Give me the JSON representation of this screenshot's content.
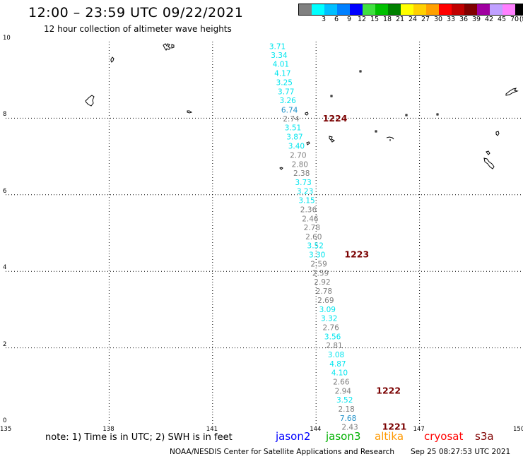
{
  "header": {
    "title": "12:00 – 23:59 UTC 09/22/2021",
    "subtitle": "12 hour collection of altimeter wave heights"
  },
  "legend": {
    "unit_label": "(ft)",
    "bins": [
      {
        "label": "",
        "color": "#808080"
      },
      {
        "label": "3",
        "color": "#00ffff"
      },
      {
        "label": "6",
        "color": "#00bfff"
      },
      {
        "label": "9",
        "color": "#0080ff"
      },
      {
        "label": "12",
        "color": "#0000ff"
      },
      {
        "label": "15",
        "color": "#40e040"
      },
      {
        "label": "18",
        "color": "#00c000"
      },
      {
        "label": "21",
        "color": "#008000"
      },
      {
        "label": "24",
        "color": "#ffff00"
      },
      {
        "label": "27",
        "color": "#ffd000"
      },
      {
        "label": "30",
        "color": "#ffa000"
      },
      {
        "label": "33",
        "color": "#ff0000"
      },
      {
        "label": "36",
        "color": "#c00000"
      },
      {
        "label": "39",
        "color": "#800000"
      },
      {
        "label": "42",
        "color": "#a000a0"
      },
      {
        "label": "45",
        "color": "#c0a0ff"
      },
      {
        "label": "70",
        "color": "#ff80ff"
      },
      {
        "label": "",
        "color": "#000000"
      }
    ]
  },
  "map": {
    "lon_labels": [
      "135",
      "138",
      "141",
      "144",
      "147",
      "150"
    ],
    "lat_labels": [
      "0",
      "2",
      "4",
      "6",
      "8",
      "10"
    ],
    "lon_range": [
      135,
      150
    ],
    "lat_range": [
      0,
      10
    ],
    "observations": [
      {
        "lat": 9.88,
        "lon": 142.88,
        "swh": "3.71",
        "color": "#00e5ee"
      },
      {
        "lat": 9.65,
        "lon": 142.93,
        "swh": "3.34",
        "color": "#00e5ee"
      },
      {
        "lat": 9.42,
        "lon": 142.98,
        "swh": "4.01",
        "color": "#00e5ee"
      },
      {
        "lat": 9.18,
        "lon": 143.03,
        "swh": "4.17",
        "color": "#00e5ee"
      },
      {
        "lat": 8.94,
        "lon": 143.08,
        "swh": "3.25",
        "color": "#00e5ee"
      },
      {
        "lat": 8.7,
        "lon": 143.13,
        "swh": "3.77",
        "color": "#00e5ee"
      },
      {
        "lat": 8.47,
        "lon": 143.18,
        "swh": "3.26",
        "color": "#00e5ee"
      },
      {
        "lat": 8.22,
        "lon": 143.23,
        "swh": "6.74",
        "color": "#1e90c8"
      },
      {
        "lat": 7.99,
        "lon": 143.28,
        "swh": "2.74",
        "color": "#7f7f7f"
      },
      {
        "lat": 7.76,
        "lon": 143.33,
        "swh": "3.51",
        "color": "#00e5ee"
      },
      {
        "lat": 7.52,
        "lon": 143.38,
        "swh": "3.87",
        "color": "#00e5ee"
      },
      {
        "lat": 7.28,
        "lon": 143.43,
        "swh": "3.40",
        "color": "#00e5ee"
      },
      {
        "lat": 7.04,
        "lon": 143.48,
        "swh": "2.70",
        "color": "#7f7f7f"
      },
      {
        "lat": 6.8,
        "lon": 143.53,
        "swh": "2.80",
        "color": "#7f7f7f"
      },
      {
        "lat": 6.57,
        "lon": 143.58,
        "swh": "2.38",
        "color": "#7f7f7f"
      },
      {
        "lat": 6.33,
        "lon": 143.63,
        "swh": "3.73",
        "color": "#00e5ee"
      },
      {
        "lat": 6.1,
        "lon": 143.68,
        "swh": "3.23",
        "color": "#00e5ee"
      },
      {
        "lat": 5.86,
        "lon": 143.73,
        "swh": "3.15",
        "color": "#00e5ee"
      },
      {
        "lat": 5.62,
        "lon": 143.78,
        "swh": "2.36",
        "color": "#7f7f7f"
      },
      {
        "lat": 5.38,
        "lon": 143.83,
        "swh": "2.46",
        "color": "#7f7f7f"
      },
      {
        "lat": 5.15,
        "lon": 143.88,
        "swh": "2.78",
        "color": "#7f7f7f"
      },
      {
        "lat": 4.91,
        "lon": 143.93,
        "swh": "2.60",
        "color": "#7f7f7f"
      },
      {
        "lat": 4.68,
        "lon": 143.98,
        "swh": "3.52",
        "color": "#00e5ee"
      },
      {
        "lat": 4.44,
        "lon": 144.03,
        "swh": "3.30",
        "color": "#00e5ee"
      },
      {
        "lat": 4.2,
        "lon": 144.08,
        "swh": "2.59",
        "color": "#7f7f7f"
      },
      {
        "lat": 3.96,
        "lon": 144.13,
        "swh": "2.59",
        "color": "#7f7f7f"
      },
      {
        "lat": 3.73,
        "lon": 144.18,
        "swh": "2.92",
        "color": "#7f7f7f"
      },
      {
        "lat": 3.49,
        "lon": 144.23,
        "swh": "2.78",
        "color": "#7f7f7f"
      },
      {
        "lat": 3.25,
        "lon": 144.28,
        "swh": "2.69",
        "color": "#7f7f7f"
      },
      {
        "lat": 3.01,
        "lon": 144.33,
        "swh": "3.09",
        "color": "#00e5ee"
      },
      {
        "lat": 2.78,
        "lon": 144.38,
        "swh": "3.32",
        "color": "#00e5ee"
      },
      {
        "lat": 2.54,
        "lon": 144.43,
        "swh": "2.76",
        "color": "#7f7f7f"
      },
      {
        "lat": 2.3,
        "lon": 144.48,
        "swh": "3.56",
        "color": "#00e5ee"
      },
      {
        "lat": 2.07,
        "lon": 144.53,
        "swh": "2.81",
        "color": "#7f7f7f"
      },
      {
        "lat": 1.83,
        "lon": 144.58,
        "swh": "3.08",
        "color": "#00e5ee"
      },
      {
        "lat": 1.59,
        "lon": 144.63,
        "swh": "4.87",
        "color": "#00e5ee"
      },
      {
        "lat": 1.36,
        "lon": 144.68,
        "swh": "4.10",
        "color": "#00e5ee"
      },
      {
        "lat": 1.12,
        "lon": 144.73,
        "swh": "2.66",
        "color": "#7f7f7f"
      },
      {
        "lat": 0.88,
        "lon": 144.78,
        "swh": "2.94",
        "color": "#7f7f7f"
      },
      {
        "lat": 0.65,
        "lon": 144.83,
        "swh": "3.52",
        "color": "#00e5ee"
      },
      {
        "lat": 0.41,
        "lon": 144.88,
        "swh": "2.18",
        "color": "#7f7f7f"
      },
      {
        "lat": 0.17,
        "lon": 144.93,
        "swh": "7.68",
        "color": "#1e90c8"
      },
      {
        "lat": -0.06,
        "lon": 144.98,
        "swh": "2.43",
        "color": "#7f7f7f"
      }
    ],
    "time_labels": [
      {
        "lat": 7.99,
        "lon": 144.55,
        "text": "1224"
      },
      {
        "lat": 4.44,
        "lon": 145.18,
        "text": "1223"
      },
      {
        "lat": 0.88,
        "lon": 146.1,
        "text": "1222"
      },
      {
        "lat": -0.06,
        "lon": 146.27,
        "text": "1221"
      }
    ]
  },
  "footer": {
    "note": "note:  1) Time is in UTC;  2) SWH is in feet",
    "satellites": [
      {
        "name": "jason2",
        "color": "#0000ff"
      },
      {
        "name": "jason3",
        "color": "#00b000"
      },
      {
        "name": "altika",
        "color": "#ff9900"
      },
      {
        "name": "cryosat",
        "color": "#ff0000"
      },
      {
        "name": "s3a",
        "color": "#800000"
      }
    ],
    "credit": "NOAA/NESDIS Center for Satellite Applications and Research",
    "timestamp": "Sep 25 08:27:53 UTC 2021"
  }
}
